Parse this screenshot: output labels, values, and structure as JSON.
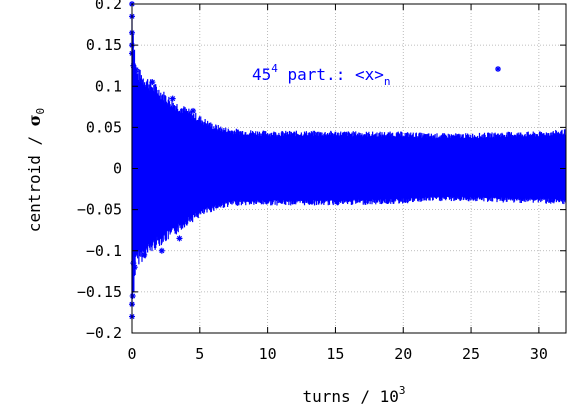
{
  "chart_data": {
    "type": "scatter",
    "title": "",
    "xlabel": {
      "prefix": "turns / 10",
      "sup": "3"
    },
    "ylabel": {
      "prefix": "centroid / ",
      "sym": "σ",
      "sub": "0"
    },
    "xlim": [
      0,
      32
    ],
    "ylim": [
      -0.2,
      0.2
    ],
    "xticks": [
      0,
      5,
      10,
      15,
      20,
      25,
      30
    ],
    "xtick_labels": [
      "0",
      "5",
      "10",
      "15",
      "20",
      "25",
      "30"
    ],
    "yticks": [
      0.2,
      0.15,
      0.1,
      0.05,
      0,
      -0.05,
      -0.1,
      -0.15,
      -0.2
    ],
    "ytick_labels": [
      "0.2",
      "0.15",
      "0.1",
      "0.05",
      "0",
      "−0.05",
      "−0.1",
      "−0.15",
      "−0.2"
    ],
    "grid": true,
    "legend": {
      "placement": "top-right",
      "base": "45",
      "sup": "4",
      "text": " part.: <x>",
      "sub": "n",
      "marker": "*"
    },
    "series": [
      {
        "color": "#0000ff",
        "marker": "star",
        "envelope": [
          {
            "x": 0.0,
            "min": -0.18,
            "max": 0.2
          },
          {
            "x": 0.3,
            "min": -0.12,
            "max": 0.125
          },
          {
            "x": 1.0,
            "min": -0.11,
            "max": 0.115
          },
          {
            "x": 2.0,
            "min": -0.095,
            "max": 0.1
          },
          {
            "x": 3.0,
            "min": -0.085,
            "max": 0.085
          },
          {
            "x": 4.0,
            "min": -0.07,
            "max": 0.075
          },
          {
            "x": 5.0,
            "min": -0.06,
            "max": 0.065
          },
          {
            "x": 6.0,
            "min": -0.052,
            "max": 0.055
          },
          {
            "x": 7.0,
            "min": -0.047,
            "max": 0.05
          },
          {
            "x": 8.0,
            "min": -0.045,
            "max": 0.048
          },
          {
            "x": 10.0,
            "min": -0.045,
            "max": 0.046
          },
          {
            "x": 12.0,
            "min": -0.045,
            "max": 0.046
          },
          {
            "x": 15.0,
            "min": -0.045,
            "max": 0.046
          },
          {
            "x": 18.0,
            "min": -0.044,
            "max": 0.045
          },
          {
            "x": 20.0,
            "min": -0.043,
            "max": 0.045
          },
          {
            "x": 22.0,
            "min": -0.04,
            "max": 0.043
          },
          {
            "x": 25.0,
            "min": -0.04,
            "max": 0.043
          },
          {
            "x": 28.0,
            "min": -0.042,
            "max": 0.045
          },
          {
            "x": 30.0,
            "min": -0.042,
            "max": 0.045
          },
          {
            "x": 32.0,
            "min": -0.045,
            "max": 0.048
          }
        ],
        "points": [
          {
            "x": 0.0,
            "y": 0.2
          },
          {
            "x": 0.0,
            "y": 0.185
          },
          {
            "x": 0.0,
            "y": 0.165
          },
          {
            "x": 0.0,
            "y": 0.15
          },
          {
            "x": 0.0,
            "y": 0.14
          },
          {
            "x": 0.0,
            "y": -0.165
          },
          {
            "x": 0.0,
            "y": -0.18
          },
          {
            "x": 0.05,
            "y": -0.155
          },
          {
            "x": 0.1,
            "y": 0.125
          },
          {
            "x": 0.1,
            "y": -0.115
          },
          {
            "x": 0.2,
            "y": -0.12
          },
          {
            "x": 0.3,
            "y": 0.12
          },
          {
            "x": 0.6,
            "y": -0.09
          },
          {
            "x": 0.9,
            "y": -0.105
          },
          {
            "x": 1.5,
            "y": 0.105
          },
          {
            "x": 2.2,
            "y": -0.1
          },
          {
            "x": 3.0,
            "y": 0.085
          },
          {
            "x": 3.5,
            "y": -0.085
          },
          {
            "x": 4.5,
            "y": 0.07
          }
        ]
      }
    ]
  }
}
